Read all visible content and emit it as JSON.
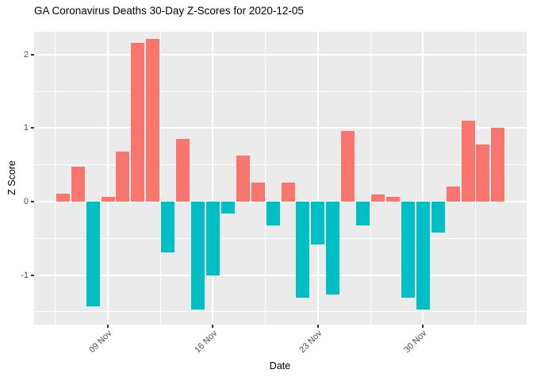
{
  "chart_data": {
    "type": "bar",
    "title": "GA Coronavirus Deaths 30-Day Z-Scores for 2020-12-05",
    "xlabel": "Date",
    "ylabel": "Z Score",
    "dates": [
      "2020-11-06",
      "2020-11-07",
      "2020-11-08",
      "2020-11-09",
      "2020-11-10",
      "2020-11-11",
      "2020-11-12",
      "2020-11-13",
      "2020-11-14",
      "2020-11-15",
      "2020-11-16",
      "2020-11-17",
      "2020-11-18",
      "2020-11-19",
      "2020-11-20",
      "2020-11-21",
      "2020-11-22",
      "2020-11-23",
      "2020-11-24",
      "2020-11-25",
      "2020-11-26",
      "2020-11-27",
      "2020-11-28",
      "2020-11-29",
      "2020-11-30",
      "2020-12-01",
      "2020-12-02",
      "2020-12-03",
      "2020-12-04",
      "2020-12-05"
    ],
    "values": [
      0.11,
      0.47,
      -1.42,
      0.06,
      0.68,
      2.16,
      2.21,
      -0.69,
      0.85,
      -1.47,
      -1.0,
      -0.16,
      0.63,
      0.26,
      -0.32,
      0.26,
      -1.31,
      -0.58,
      -1.26,
      0.96,
      -0.32,
      0.1,
      0.06,
      -1.31,
      -1.47,
      -0.42,
      0.21,
      1.1,
      0.78,
      1.0
    ],
    "x_tick_labels": [
      "09 Nov",
      "16 Nov",
      "23 Nov",
      "30 Nov"
    ],
    "x_tick_day_indices": [
      3,
      10,
      17,
      24
    ],
    "x_minor_day_indices": [
      -0.5,
      6.5,
      13.5,
      20.5,
      27.5
    ],
    "y_tick_labels": [
      "-1",
      "0",
      "1",
      "2"
    ],
    "y_major_ticks": [
      -1,
      0,
      1,
      2
    ],
    "y_minor_ticks": [
      -1.5,
      -0.5,
      0.5,
      1.5
    ],
    "ylim": [
      -1.673,
      2.31
    ],
    "grid": true,
    "legend": "none",
    "colors": {
      "positive_bar": "#F8766D",
      "negative_bar": "#00BFC4",
      "panel_background": "#EBEBEB",
      "gridline": "#FFFFFF",
      "tick_label": "#4D4D4D",
      "tick_mark": "#333333",
      "text": "#000000"
    }
  }
}
